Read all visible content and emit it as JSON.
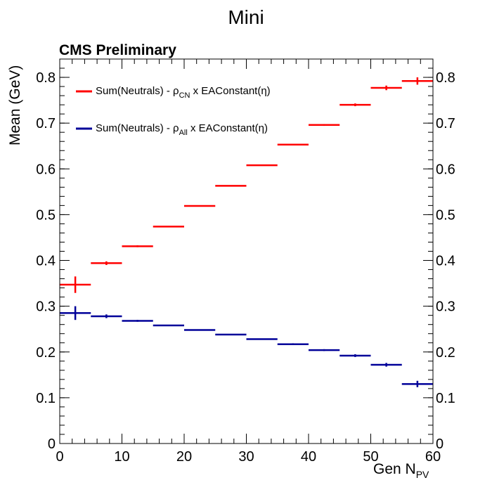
{
  "chart_data": {
    "type": "scatter",
    "title": "Mini",
    "subtitle": "CMS Preliminary",
    "xlabel_main": "Gen N",
    "xlabel_sub": "PV",
    "ylabel": "Mean (GeV)",
    "xlim": [
      0,
      60
    ],
    "ylim": [
      0,
      0.84
    ],
    "x_ticks": [
      0,
      10,
      20,
      30,
      40,
      50,
      60
    ],
    "y_ticks": [
      0,
      0.1,
      0.2,
      0.3,
      0.4,
      0.5,
      0.6,
      0.7,
      0.8
    ],
    "x_tick_labels": [
      "0",
      "10",
      "20",
      "30",
      "40",
      "50",
      "60"
    ],
    "y_tick_labels": [
      "0",
      "0.1",
      "0.2",
      "0.3",
      "0.4",
      "0.5",
      "0.6",
      "0.7",
      "0.8"
    ],
    "grid": false,
    "legend_position": "top-left",
    "series": [
      {
        "legend_prefix": "Sum(Neutrals) - ρ",
        "legend_sub": "CN",
        "legend_suffix": " x EAConstant(η)",
        "color": "#ff0000",
        "points": [
          {
            "x_low": 0,
            "x_high": 5,
            "y": 0.347,
            "err": 0.018
          },
          {
            "x_low": 5,
            "x_high": 10,
            "y": 0.394,
            "err": 0.004
          },
          {
            "x_low": 10,
            "x_high": 15,
            "y": 0.431,
            "err": 0.002
          },
          {
            "x_low": 15,
            "x_high": 20,
            "y": 0.474,
            "err": 0.001
          },
          {
            "x_low": 20,
            "x_high": 25,
            "y": 0.519,
            "err": 0.001
          },
          {
            "x_low": 25,
            "x_high": 30,
            "y": 0.563,
            "err": 0.001
          },
          {
            "x_low": 30,
            "x_high": 35,
            "y": 0.608,
            "err": 0.001
          },
          {
            "x_low": 35,
            "x_high": 40,
            "y": 0.653,
            "err": 0.001
          },
          {
            "x_low": 40,
            "x_high": 45,
            "y": 0.696,
            "err": 0.002
          },
          {
            "x_low": 45,
            "x_high": 50,
            "y": 0.74,
            "err": 0.003
          },
          {
            "x_low": 50,
            "x_high": 55,
            "y": 0.777,
            "err": 0.005
          },
          {
            "x_low": 55,
            "x_high": 60,
            "y": 0.792,
            "err": 0.008
          }
        ]
      },
      {
        "legend_prefix": "Sum(Neutrals) - ρ",
        "legend_sub": "All",
        "legend_suffix": " x EAConstant(η)",
        "color": "#000099",
        "points": [
          {
            "x_low": 0,
            "x_high": 5,
            "y": 0.285,
            "err": 0.015
          },
          {
            "x_low": 5,
            "x_high": 10,
            "y": 0.278,
            "err": 0.004
          },
          {
            "x_low": 10,
            "x_high": 15,
            "y": 0.268,
            "err": 0.002
          },
          {
            "x_low": 15,
            "x_high": 20,
            "y": 0.258,
            "err": 0.001
          },
          {
            "x_low": 20,
            "x_high": 25,
            "y": 0.248,
            "err": 0.001
          },
          {
            "x_low": 25,
            "x_high": 30,
            "y": 0.238,
            "err": 0.001
          },
          {
            "x_low": 30,
            "x_high": 35,
            "y": 0.228,
            "err": 0.001
          },
          {
            "x_low": 35,
            "x_high": 40,
            "y": 0.217,
            "err": 0.002
          },
          {
            "x_low": 40,
            "x_high": 45,
            "y": 0.204,
            "err": 0.002
          },
          {
            "x_low": 45,
            "x_high": 50,
            "y": 0.192,
            "err": 0.003
          },
          {
            "x_low": 50,
            "x_high": 55,
            "y": 0.172,
            "err": 0.004
          },
          {
            "x_low": 55,
            "x_high": 60,
            "y": 0.13,
            "err": 0.007
          }
        ]
      }
    ]
  }
}
